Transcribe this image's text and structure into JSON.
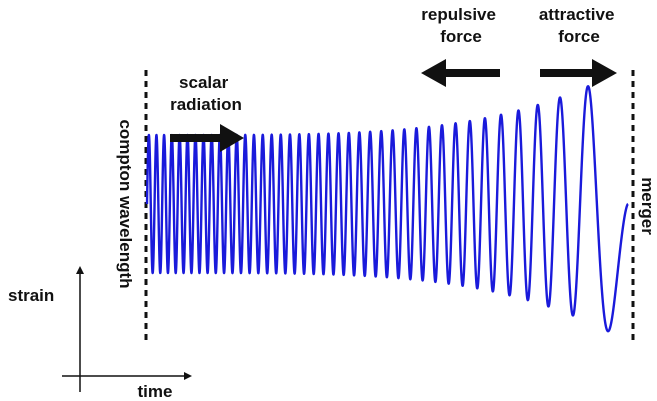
{
  "labels": {
    "scalar_radiation": [
      "scalar",
      "radiation"
    ],
    "repulsive_force": [
      "repulsive",
      "force"
    ],
    "attractive_force": [
      "attractive",
      "force"
    ],
    "compton_wavelength": "compton wavelength",
    "merger": "merger",
    "strain": "strain",
    "time": "time"
  },
  "colors": {
    "waveform": "#1a1adb",
    "ink": "#111111"
  },
  "waveform": {
    "description_free": true,
    "cycles": 40,
    "amplitude_start": 0.5,
    "amplitude_end": 1.0
  }
}
